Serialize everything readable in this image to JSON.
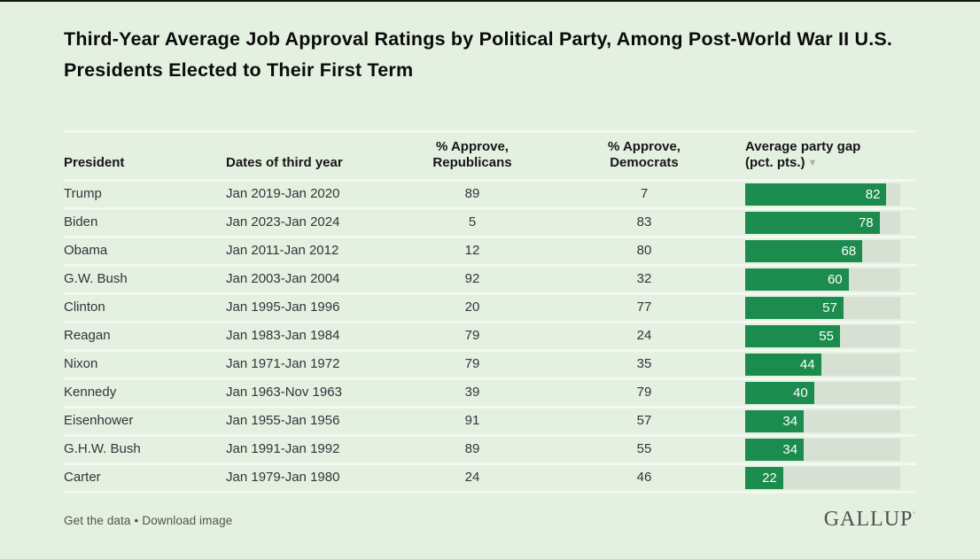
{
  "title": "Third-Year Average Job Approval Ratings by Political Party, Among Post-World War II U.S. Presidents Elected to Their First Term",
  "colors": {
    "background": "#e4f0e0",
    "bar_green": "#1c8b4e",
    "bar_track": "#d7e1d3",
    "row_separator": "#f3f8f1",
    "top_border": "#161616",
    "header_text": "#161616",
    "body_text": "#30363a",
    "sort_indicator": "#a7b2a7"
  },
  "table": {
    "headers": {
      "president": "President",
      "dates": "Dates of third year",
      "approve_rep_line1": "% Approve,",
      "approve_rep_line2": "Republicans",
      "approve_dem_line1": "% Approve,",
      "approve_dem_line2": "Democrats",
      "gap_line1": "Average party gap",
      "gap_line2": "(pct. pts.)",
      "sort_indicator": "▼"
    },
    "rows": [
      {
        "president": "Trump",
        "dates": "Jan 2019-Jan 2020",
        "approve_rep": 89,
        "approve_dem": 7,
        "gap": 82
      },
      {
        "president": "Biden",
        "dates": "Jan 2023-Jan 2024",
        "approve_rep": 5,
        "approve_dem": 83,
        "gap": 78
      },
      {
        "president": "Obama",
        "dates": "Jan 2011-Jan 2012",
        "approve_rep": 12,
        "approve_dem": 80,
        "gap": 68
      },
      {
        "president": "G.W. Bush",
        "dates": "Jan 2003-Jan 2004",
        "approve_rep": 92,
        "approve_dem": 32,
        "gap": 60
      },
      {
        "president": "Clinton",
        "dates": "Jan 1995-Jan 1996",
        "approve_rep": 20,
        "approve_dem": 77,
        "gap": 57
      },
      {
        "president": "Reagan",
        "dates": "Jan 1983-Jan 1984",
        "approve_rep": 79,
        "approve_dem": 24,
        "gap": 55
      },
      {
        "president": "Nixon",
        "dates": "Jan 1971-Jan 1972",
        "approve_rep": 79,
        "approve_dem": 35,
        "gap": 44
      },
      {
        "president": "Kennedy",
        "dates": "Jan 1963-Nov 1963",
        "approve_rep": 39,
        "approve_dem": 79,
        "gap": 40
      },
      {
        "president": "Eisenhower",
        "dates": "Jan 1955-Jan 1956",
        "approve_rep": 91,
        "approve_dem": 57,
        "gap": 34
      },
      {
        "president": "G.H.W. Bush",
        "dates": "Jan 1991-Jan 1992",
        "approve_rep": 89,
        "approve_dem": 55,
        "gap": 34
      },
      {
        "president": "Carter",
        "dates": "Jan 1979-Jan 1980",
        "approve_rep": 24,
        "approve_dem": 46,
        "gap": 22
      }
    ]
  },
  "footer": {
    "get_data_label": "Get the data",
    "separator": "•",
    "download_label": "Download image",
    "brand": "GALLUP",
    "brand_mark": "'"
  },
  "chart_data": {
    "type": "bar",
    "title": "Third-Year Average Job Approval Ratings by Political Party, Among Post-World War II U.S. Presidents Elected to Their First Term",
    "categories": [
      "Trump",
      "Biden",
      "Obama",
      "G.W. Bush",
      "Clinton",
      "Reagan",
      "Nixon",
      "Kennedy",
      "Eisenhower",
      "G.H.W. Bush",
      "Carter"
    ],
    "dates_of_third_year": [
      "Jan 2019-Jan 2020",
      "Jan 2023-Jan 2024",
      "Jan 2011-Jan 2012",
      "Jan 2003-Jan 2004",
      "Jan 1995-Jan 1996",
      "Jan 1983-Jan 1984",
      "Jan 1971-Jan 1972",
      "Jan 1963-Nov 1963",
      "Jan 1955-Jan 1956",
      "Jan 1991-Jan 1992",
      "Jan 1979-Jan 1980"
    ],
    "series": [
      {
        "name": "% Approve, Republicans",
        "values": [
          89,
          5,
          12,
          92,
          20,
          79,
          79,
          39,
          91,
          89,
          24
        ]
      },
      {
        "name": "% Approve, Democrats",
        "values": [
          7,
          83,
          80,
          32,
          77,
          24,
          35,
          79,
          57,
          55,
          46
        ]
      },
      {
        "name": "Average party gap (pct. pts.)",
        "values": [
          82,
          78,
          68,
          60,
          57,
          55,
          44,
          40,
          34,
          34,
          22
        ]
      }
    ],
    "bar_series_shown": "Average party gap (pct. pts.)",
    "orientation": "horizontal",
    "xlim": [
      0,
      90
    ],
    "grid": false,
    "legend": false,
    "sorted_by": "Average party gap, descending",
    "bar_labels_inside": true
  }
}
